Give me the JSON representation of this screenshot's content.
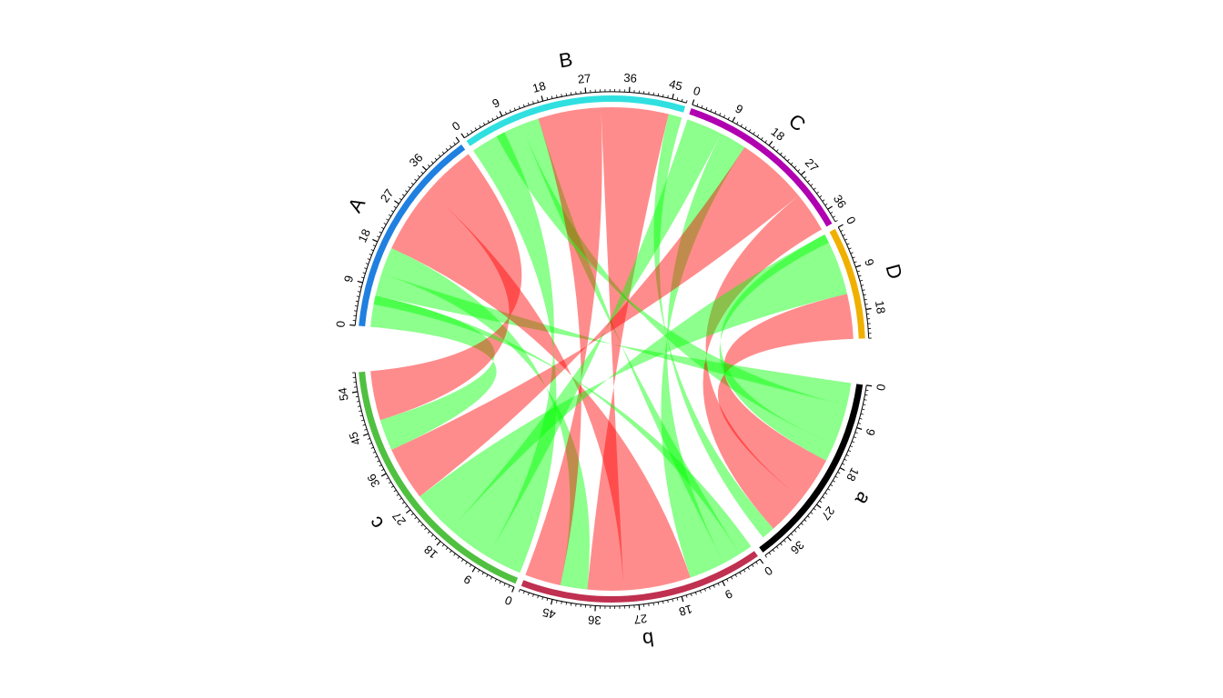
{
  "chart_data": {
    "type": "chord",
    "title": "",
    "sectors": [
      {
        "name": "A",
        "max": 45,
        "ticks": [
          0,
          9,
          18,
          27,
          36
        ],
        "color": "#2080E0"
      },
      {
        "name": "B",
        "max": 48,
        "ticks": [
          0,
          9,
          18,
          27,
          36,
          45
        ],
        "color": "#30E0E0"
      },
      {
        "name": "C",
        "max": 39,
        "ticks": [
          0,
          9,
          18,
          27,
          36
        ],
        "color": "#B000B0"
      },
      {
        "name": "D",
        "max": 24,
        "ticks": [
          0,
          9,
          18
        ],
        "color": "#F0B000"
      },
      {
        "name": "a",
        "max": 42,
        "ticks": [
          0,
          9,
          18,
          27,
          36
        ],
        "color": "#000000"
      },
      {
        "name": "b",
        "max": 52,
        "ticks": [
          0,
          9,
          18,
          27,
          36,
          45
        ],
        "color": "#C03050"
      },
      {
        "name": "c",
        "max": 58,
        "ticks": [
          0,
          9,
          18,
          27,
          36,
          45,
          54
        ],
        "color": "#50C040"
      }
    ],
    "links": [
      {
        "from": "A",
        "from_range": [
          0,
          7
        ],
        "to": "c",
        "to_range": [
          40,
          47
        ],
        "color": "#00FF00"
      },
      {
        "from": "A",
        "from_range": [
          7,
          12
        ],
        "to": "a",
        "to_range": [
          0,
          5
        ],
        "color": "#00FF00"
      },
      {
        "from": "A",
        "from_range": [
          12,
          18
        ],
        "to": "b",
        "to_range": [
          38,
          44
        ],
        "color": "#00FF00"
      },
      {
        "from": "A",
        "from_range": [
          18,
          33
        ],
        "to": "b",
        "to_range": [
          15,
          30
        ],
        "color": "#FF0000"
      },
      {
        "from": "A",
        "from_range": [
          33,
          45
        ],
        "to": "c",
        "to_range": [
          47,
          58
        ],
        "color": "#FF0000"
      },
      {
        "from": "B",
        "from_range": [
          0,
          8
        ],
        "to": "c",
        "to_range": [
          0,
          8
        ],
        "color": "#00FF00"
      },
      {
        "from": "B",
        "from_range": [
          8,
          12
        ],
        "to": "a",
        "to_range": [
          10,
          14
        ],
        "color": "#00FF00"
      },
      {
        "from": "B",
        "from_range": [
          12,
          16
        ],
        "to": "b",
        "to_range": [
          3,
          7
        ],
        "color": "#00FF00"
      },
      {
        "from": "B",
        "from_range": [
          16,
          30
        ],
        "to": "b",
        "to_range": [
          44,
          52
        ],
        "color": "#FF0000"
      },
      {
        "from": "B",
        "from_range": [
          30,
          45
        ],
        "to": "b",
        "to_range": [
          30,
          38
        ],
        "color": "#FF0000"
      },
      {
        "from": "B",
        "from_range": [
          45,
          48
        ],
        "to": "a",
        "to_range": [
          37,
          40
        ],
        "color": "#00FF00"
      },
      {
        "from": "C",
        "from_range": [
          0,
          8
        ],
        "to": "c",
        "to_range": [
          8,
          18
        ],
        "color": "#00FF00"
      },
      {
        "from": "C",
        "from_range": [
          8,
          14
        ],
        "to": "b",
        "to_range": [
          7,
          15
        ],
        "color": "#00FF00"
      },
      {
        "from": "C",
        "from_range": [
          14,
          30
        ],
        "to": "c",
        "to_range": [
          28,
          40
        ],
        "color": "#FF0000"
      },
      {
        "from": "C",
        "from_range": [
          30,
          39
        ],
        "to": "a",
        "to_range": [
          28,
          37
        ],
        "color": "#FF0000"
      },
      {
        "from": "D",
        "from_range": [
          0,
          14
        ],
        "to": "c",
        "to_range": [
          18,
          28
        ],
        "color": "#00FF00"
      },
      {
        "from": "D",
        "from_range": [
          14,
          24
        ],
        "to": "a",
        "to_range": [
          18,
          28
        ],
        "color": "#FF0000"
      },
      {
        "from": "D",
        "from_range": [
          0,
          2
        ],
        "to": "a",
        "to_range": [
          14,
          18
        ],
        "color": "#00FF00"
      },
      {
        "from": "A",
        "from_range": [
          5,
          7
        ],
        "to": "b",
        "to_range": [
          0,
          3
        ],
        "color": "#00FF00"
      },
      {
        "from": "B",
        "from_range": [
          6,
          8
        ],
        "to": "a",
        "to_range": [
          5,
          10
        ],
        "color": "#00FF00"
      }
    ]
  }
}
